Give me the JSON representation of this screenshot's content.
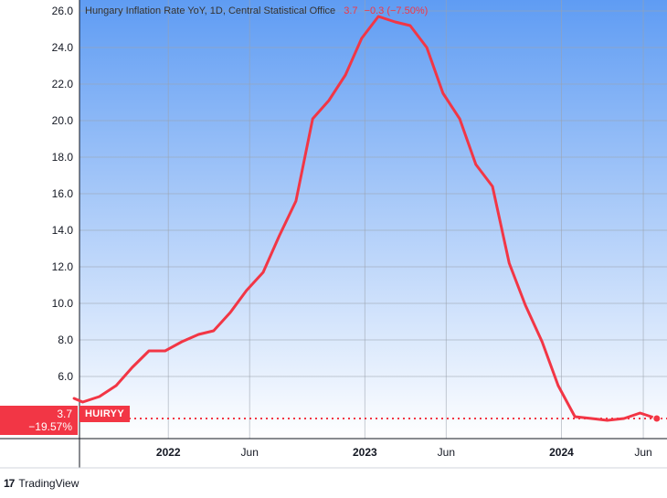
{
  "legend": {
    "title": "Hungary Inflation Rate YoY, 1D, Central Statistical Office",
    "last": "3.7",
    "change": "−0.3 (−7.50%)"
  },
  "price_badge": {
    "value": "3.7",
    "change_pct": "−19.57%"
  },
  "symbol": "HUIRYY",
  "brand": {
    "logo_text": "17",
    "name": "TradingView"
  },
  "colors": {
    "line": "#f23645",
    "bg_top": "#5f9cf3",
    "bg_bottom": "#ffffff",
    "grid": "#9aa3ad"
  },
  "chart_data": {
    "type": "line",
    "title": "Hungary Inflation Rate YoY, 1D, Central Statistical Office",
    "xlabel": "",
    "ylabel": "",
    "ylim": [
      2.6,
      26.6
    ],
    "xlim": [
      "2021-07-20",
      "2024-07-15"
    ],
    "grid": true,
    "y_ticks": [
      "6.0",
      "8.0",
      "10.0",
      "12.0",
      "14.0",
      "16.0",
      "18.0",
      "20.0",
      "22.0",
      "24.0",
      "26.0"
    ],
    "x_ticks": [
      {
        "date": "2022-01-01",
        "label": "2022",
        "bold": true
      },
      {
        "date": "2022-06-01",
        "label": "Jun",
        "bold": false
      },
      {
        "date": "2023-01-01",
        "label": "2023",
        "bold": true
      },
      {
        "date": "2023-06-01",
        "label": "Jun",
        "bold": false
      },
      {
        "date": "2024-01-01",
        "label": "2024",
        "bold": true
      },
      {
        "date": "2024-06-01",
        "label": "Jun",
        "bold": false
      }
    ],
    "series": [
      {
        "points": [
          {
            "x": "2021-07-10",
            "y": 4.8
          },
          {
            "x": "2021-07-26",
            "y": 4.6
          },
          {
            "x": "2021-08-26",
            "y": 4.9
          },
          {
            "x": "2021-09-26",
            "y": 5.5
          },
          {
            "x": "2021-10-26",
            "y": 6.5
          },
          {
            "x": "2021-11-26",
            "y": 7.4
          },
          {
            "x": "2021-12-26",
            "y": 7.4
          },
          {
            "x": "2022-01-26",
            "y": 7.9
          },
          {
            "x": "2022-02-26",
            "y": 8.3
          },
          {
            "x": "2022-03-26",
            "y": 8.5
          },
          {
            "x": "2022-04-26",
            "y": 9.5
          },
          {
            "x": "2022-05-26",
            "y": 10.7
          },
          {
            "x": "2022-06-26",
            "y": 11.7
          },
          {
            "x": "2022-07-26",
            "y": 13.7
          },
          {
            "x": "2022-08-26",
            "y": 15.6
          },
          {
            "x": "2022-09-26",
            "y": 20.1
          },
          {
            "x": "2022-10-26",
            "y": 21.1
          },
          {
            "x": "2022-11-26",
            "y": 22.5
          },
          {
            "x": "2022-12-26",
            "y": 24.5
          },
          {
            "x": "2023-01-26",
            "y": 25.7
          },
          {
            "x": "2023-02-26",
            "y": 25.4
          },
          {
            "x": "2023-03-26",
            "y": 25.2
          },
          {
            "x": "2023-04-26",
            "y": 24.0
          },
          {
            "x": "2023-05-26",
            "y": 21.5
          },
          {
            "x": "2023-06-26",
            "y": 20.1
          },
          {
            "x": "2023-07-26",
            "y": 17.6
          },
          {
            "x": "2023-08-26",
            "y": 16.4
          },
          {
            "x": "2023-09-26",
            "y": 12.2
          },
          {
            "x": "2023-10-26",
            "y": 9.9
          },
          {
            "x": "2023-11-26",
            "y": 7.9
          },
          {
            "x": "2023-12-26",
            "y": 5.5
          },
          {
            "x": "2024-01-26",
            "y": 3.8
          },
          {
            "x": "2024-02-26",
            "y": 3.7
          },
          {
            "x": "2024-03-26",
            "y": 3.6
          },
          {
            "x": "2024-04-26",
            "y": 3.7
          },
          {
            "x": "2024-05-26",
            "y": 4.0
          },
          {
            "x": "2024-06-26",
            "y": 3.7
          }
        ]
      }
    ]
  }
}
